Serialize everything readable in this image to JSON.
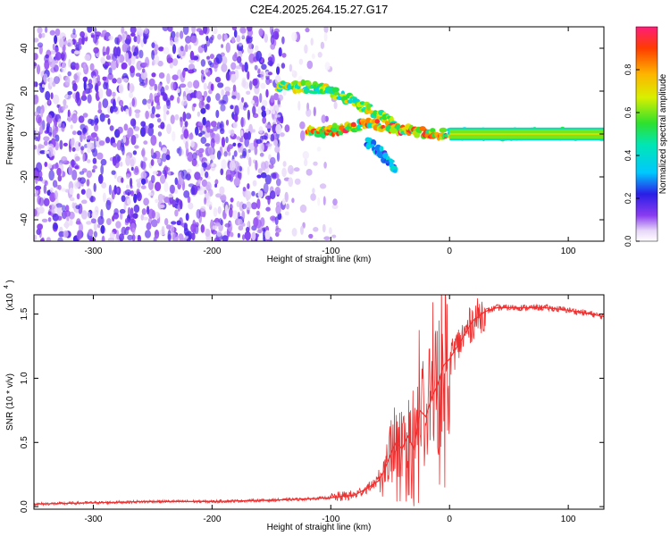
{
  "title": "C2E4.2025.264.15.27.G17",
  "chart_data": [
    {
      "type": "heatmap",
      "xlabel": "Height of straight line (km)",
      "ylabel": "Frequency (Hz)",
      "xlim": [
        -350,
        130
      ],
      "ylim": [
        -50,
        50
      ],
      "xticks": [
        -300,
        -200,
        -100,
        0,
        100
      ],
      "yticks": [
        -40,
        -20,
        0,
        20,
        40
      ],
      "grid": false,
      "colorbar": {
        "label": "Normalized spectral amplitude",
        "range": [
          0,
          1
        ],
        "ticks": [
          "0.0",
          "0.2",
          "0.4",
          "0.6",
          "0.8"
        ]
      },
      "features": [
        {
          "x_range": [
            -350,
            -140
          ],
          "y_range": [
            -50,
            50
          ],
          "level": 0.15
        },
        {
          "x_range": [
            -140,
            -95
          ],
          "y_range": [
            -50,
            50
          ],
          "level": 0.08
        },
        {
          "x": [
            -145,
            -120,
            -100,
            -80,
            -60,
            -45
          ],
          "y": [
            22,
            22,
            20,
            15,
            9,
            4
          ],
          "level": 0.55
        },
        {
          "x": [
            -120,
            -90,
            -70,
            -50,
            -30,
            -10,
            0
          ],
          "y": [
            1,
            2,
            5,
            3,
            1,
            0,
            0
          ],
          "level": 0.7
        },
        {
          "x": [
            -70,
            -60,
            -50,
            -45
          ],
          "y": [
            -3,
            -8,
            -13,
            -18
          ],
          "level": 0.3
        },
        {
          "x": [
            0,
            40,
            80,
            130
          ],
          "y": [
            0,
            0,
            0,
            0
          ],
          "level": 0.55
        }
      ]
    },
    {
      "type": "line",
      "xlabel": "Height of straight line (km)",
      "ylabel": "SNR (10 * v/v)",
      "scale_label": "(x10",
      "scale_exponent": "4",
      "xlim": [
        -350,
        130
      ],
      "ylim": [
        -0.02,
        1.65
      ],
      "xticks": [
        -300,
        -200,
        -100,
        0,
        100
      ],
      "yticks": [
        "0.0",
        "0.5",
        "1.0",
        "1.5"
      ],
      "grid": false,
      "series": [
        {
          "color": "#ee3030",
          "x": [
            -350,
            -300,
            -250,
            -200,
            -150,
            -120,
            -100,
            -90,
            -80,
            -70,
            -60,
            -55,
            -50,
            -45,
            -40,
            -35,
            -30,
            -25,
            -20,
            -15,
            -10,
            -5,
            0,
            10,
            20,
            30,
            40,
            60,
            80,
            100,
            120,
            130
          ],
          "y": [
            0.02,
            0.03,
            0.04,
            0.04,
            0.05,
            0.06,
            0.07,
            0.08,
            0.09,
            0.14,
            0.2,
            0.28,
            0.4,
            0.5,
            0.45,
            0.55,
            0.45,
            0.75,
            0.7,
            0.85,
            0.95,
            1.1,
            1.15,
            1.3,
            1.45,
            1.52,
            1.55,
            1.55,
            1.55,
            1.53,
            1.5,
            1.48
          ]
        }
      ]
    }
  ]
}
